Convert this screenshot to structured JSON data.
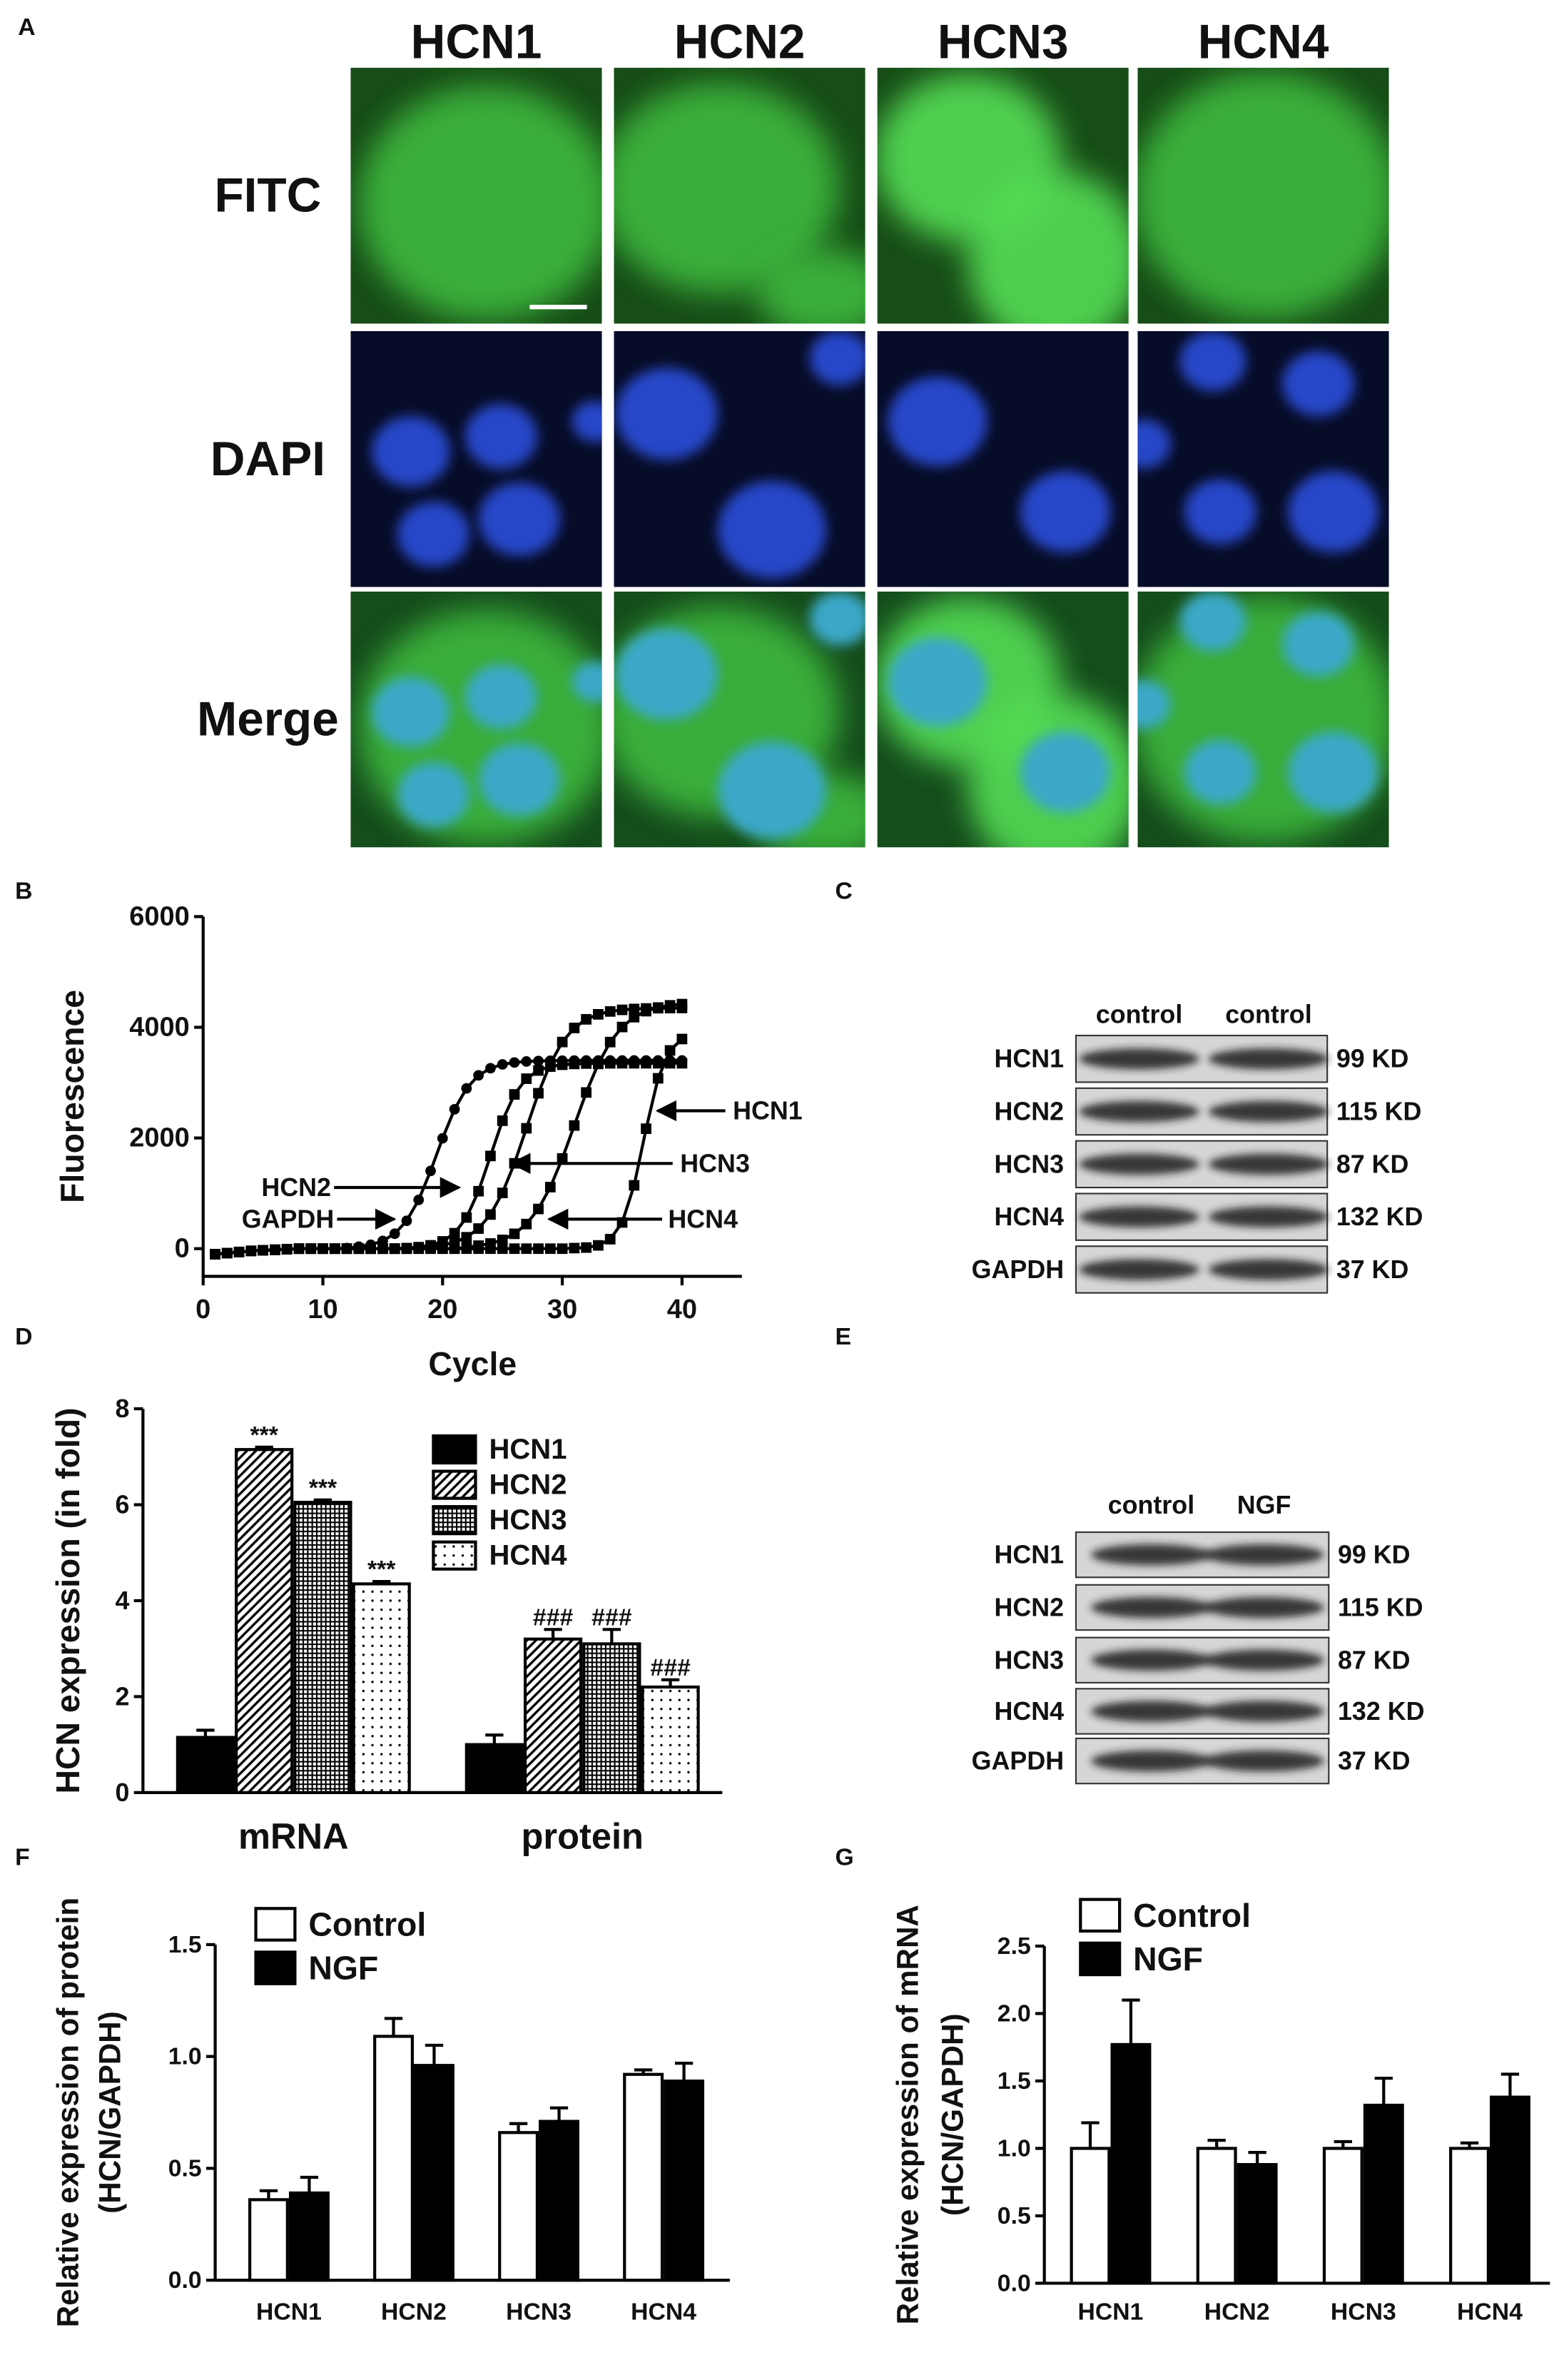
{
  "panel_labels": [
    "A",
    "B",
    "C",
    "D",
    "E",
    "F",
    "G"
  ],
  "micrographs": {
    "columns": [
      "HCN1",
      "HCN2",
      "HCN3",
      "HCN4"
    ],
    "rows": [
      "FITC",
      "DAPI",
      "Merge"
    ]
  },
  "blots": [
    {
      "columns": [
        "control",
        "control"
      ],
      "rows": [
        "HCN1",
        "HCN2",
        "HCN3",
        "HCN4",
        "GAPDH"
      ],
      "sizes": [
        "99 KD",
        "115 KD",
        "87 KD",
        "132 KD",
        "37 KD"
      ]
    },
    {
      "columns": [
        "control",
        "NGF"
      ],
      "rows": [
        "HCN1",
        "HCN2",
        "HCN3",
        "HCN4",
        "GAPDH"
      ],
      "sizes": [
        "99 KD",
        "115 KD",
        "87 KD",
        "132 KD",
        "37 KD"
      ]
    }
  ],
  "chart_data": [
    {
      "type": "line",
      "xlabel": "Cycle",
      "ylabel": "Fluorescence",
      "x": [
        1,
        2,
        3,
        4,
        5,
        6,
        7,
        8,
        9,
        10,
        11,
        12,
        13,
        14,
        15,
        16,
        17,
        18,
        19,
        20,
        21,
        22,
        23,
        24,
        25,
        26,
        27,
        28,
        29,
        30,
        31,
        32,
        33,
        34,
        35,
        36,
        37,
        38,
        39,
        40
      ],
      "xlim": [
        0,
        45
      ],
      "xticks": [
        0,
        10,
        20,
        30,
        40
      ],
      "ylim": [
        -500,
        6000
      ],
      "yticks": [
        0,
        2000,
        4000,
        6000
      ],
      "series": [
        {
          "name": "HCN1",
          "color": "#000000",
          "marker": "square",
          "values": [
            -100,
            -80,
            -60,
            -40,
            -30,
            -20,
            -10,
            0,
            0,
            0,
            0,
            0,
            0,
            0,
            0,
            0,
            0,
            0,
            0,
            0,
            0,
            0,
            0,
            0,
            0,
            0,
            0,
            0,
            0,
            0,
            10,
            20,
            59,
            171,
            473,
            1144,
            2167,
            3078,
            3582,
            3788
          ]
        },
        {
          "name": "HCN2",
          "color": "#000000",
          "marker": "square",
          "values": [
            -100,
            -80,
            -60,
            -40,
            -30,
            -20,
            -10,
            0,
            0,
            0,
            0,
            0,
            0,
            0,
            0,
            0,
            10,
            27,
            60,
            131,
            279,
            563,
            1038,
            1675,
            2312,
            2787,
            3071,
            3219,
            3290,
            3323,
            3338,
            3345,
            3348,
            3349,
            3350,
            3350,
            3350,
            3350,
            3350,
            3350
          ]
        },
        {
          "name": "HCN3",
          "color": "#000000",
          "marker": "square",
          "values": [
            -100,
            -80,
            -60,
            -40,
            -30,
            -20,
            -10,
            0,
            0,
            0,
            0,
            0,
            0,
            0,
            0,
            0,
            0,
            10,
            20,
            64,
            116,
            206,
            363,
            617,
            1007,
            1542,
            2175,
            2808,
            3344,
            3734,
            3988,
            4144,
            4234,
            4286,
            4315,
            4331,
            4340,
            4345,
            4347,
            4349
          ]
        },
        {
          "name": "HCN4",
          "color": "#000000",
          "marker": "square",
          "values": [
            -100,
            -80,
            -60,
            -40,
            -30,
            -20,
            -10,
            0,
            0,
            0,
            0,
            0,
            0,
            0,
            0,
            0,
            0,
            0,
            0,
            0,
            0,
            20,
            54,
            93,
            158,
            268,
            444,
            717,
            1112,
            1630,
            2225,
            2822,
            3338,
            3733,
            4005,
            4183,
            4292,
            4357,
            4396,
            4419
          ]
        },
        {
          "name": "GAPDH",
          "color": "#000000",
          "marker": "circle",
          "values": [
            -100,
            -80,
            -60,
            -40,
            -30,
            -20,
            -10,
            0,
            0,
            0,
            0,
            10,
            36,
            71,
            140,
            270,
            504,
            881,
            1405,
            1994,
            2519,
            2896,
            3131,
            3260,
            3329,
            3364,
            3382,
            3391,
            3396,
            3398,
            3399,
            3400,
            3400,
            3400,
            3400,
            3400,
            3400,
            3400,
            3400,
            3400
          ]
        }
      ]
    },
    {
      "type": "bar",
      "ylabel": "HCN expression (in fold)",
      "categories": [
        "mRNA",
        "protein"
      ],
      "ylim": [
        0,
        8
      ],
      "yticks": [
        0,
        2,
        4,
        6,
        8
      ],
      "series": [
        {
          "name": "HCN1",
          "color": "#000000",
          "values": [
            1.15,
            1.0
          ],
          "errors": [
            0.15,
            0.2
          ]
        },
        {
          "name": "HCN2",
          "color": "#000000",
          "pattern": "diagonal",
          "values": [
            7.15,
            3.2
          ],
          "errors": [
            0.05,
            0.2
          ],
          "significance": [
            "***",
            "###"
          ]
        },
        {
          "name": "HCN3",
          "color": "#000000",
          "pattern": "grid",
          "values": [
            6.05,
            3.1
          ],
          "errors": [
            0.05,
            0.3
          ],
          "significance": [
            "***",
            "###"
          ]
        },
        {
          "name": "HCN4",
          "color": "#000000",
          "pattern": "dots",
          "values": [
            4.35,
            2.2
          ],
          "errors": [
            0.05,
            0.15
          ],
          "significance": [
            "***",
            "###"
          ]
        }
      ]
    },
    {
      "type": "bar",
      "ylabel": [
        "Relative expression of protein",
        "(HCN/GAPDH)"
      ],
      "categories": [
        "HCN1",
        "HCN2",
        "HCN3",
        "HCN4"
      ],
      "ylim": [
        0,
        1.5
      ],
      "yticks": [
        {
          "value": 0,
          "label": "0.0"
        },
        0.5,
        {
          "value": 1,
          "label": "1.0"
        },
        1.5
      ],
      "series": [
        {
          "name": "Control",
          "color": "#ffffff",
          "values": [
            0.36,
            1.09,
            0.66,
            0.92
          ],
          "errors": [
            0.04,
            0.08,
            0.04,
            0.02
          ]
        },
        {
          "name": "NGF",
          "color": "#000000",
          "values": [
            0.39,
            0.96,
            0.71,
            0.89
          ],
          "errors": [
            0.07,
            0.09,
            0.06,
            0.08
          ]
        }
      ]
    },
    {
      "type": "bar",
      "ylabel": [
        "Relative expression of mRNA",
        "(HCN/GAPDH)"
      ],
      "categories": [
        "HCN1",
        "HCN2",
        "HCN3",
        "HCN4"
      ],
      "ylim": [
        0,
        2.5
      ],
      "yticks": [
        {
          "value": 0,
          "label": "0.0"
        },
        0.5,
        {
          "value": 1,
          "label": "1.0"
        },
        1.5,
        {
          "value": 2,
          "label": "2.0"
        },
        2.5
      ],
      "series": [
        {
          "name": "Control",
          "color": "#ffffff",
          "values": [
            1.0,
            1.0,
            1.0,
            1.0
          ],
          "errors": [
            0.19,
            0.06,
            0.05,
            0.04
          ]
        },
        {
          "name": "NGF",
          "color": "#000000",
          "values": [
            1.77,
            0.88,
            1.32,
            1.38
          ],
          "errors": [
            0.33,
            0.09,
            0.2,
            0.17
          ]
        }
      ]
    }
  ]
}
